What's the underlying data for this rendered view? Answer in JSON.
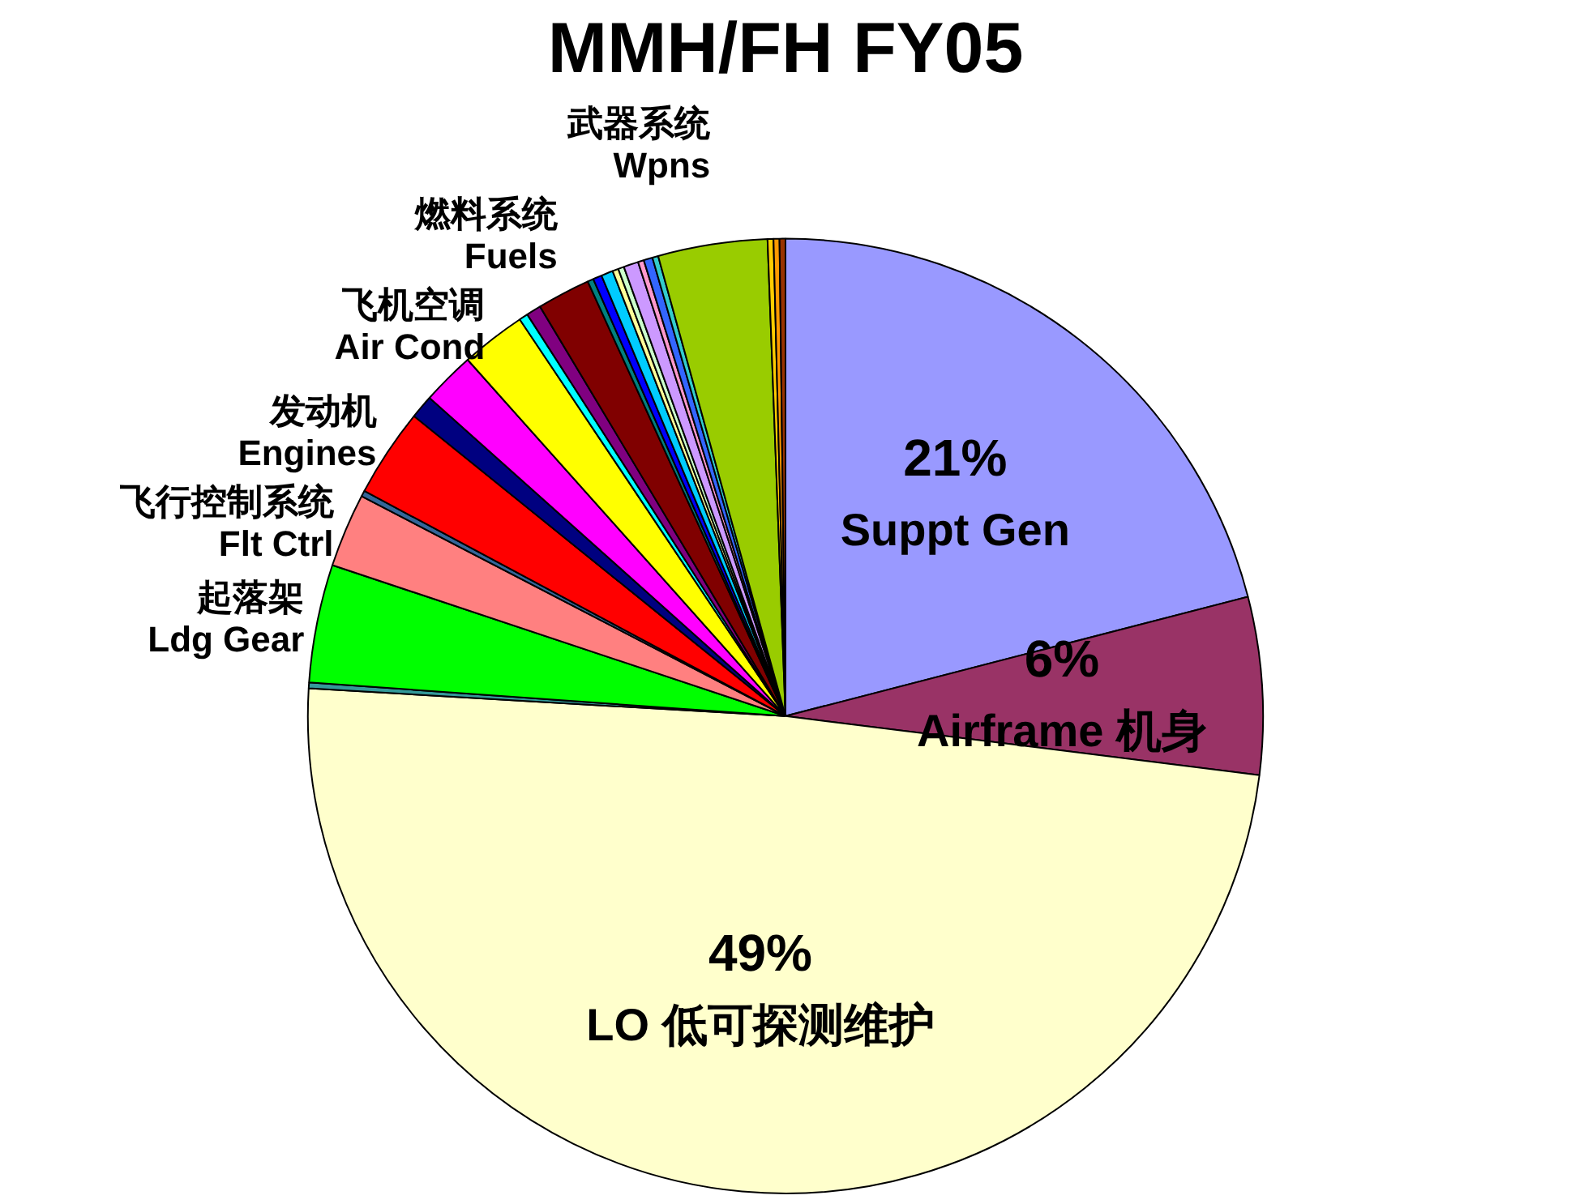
{
  "chart_data": {
    "type": "pie",
    "title": "MMH/FH FY05",
    "legend": false,
    "categories": [
      "Suppt Gen",
      "Airframe 机身",
      "LO 低可探测维护",
      null,
      "起落架 Ldg Gear",
      "飞行控制系统 Flt Ctrl",
      null,
      "发动机 Engines",
      null,
      null,
      "飞机空调 Air Cond",
      null,
      null,
      "燃料系统 Fuels",
      null,
      null,
      null,
      null,
      null,
      null,
      null,
      null,
      null,
      "武器系统 Wpns",
      null,
      null,
      null
    ],
    "values": [
      21,
      6,
      49,
      0.2,
      4,
      2.5,
      0.2,
      3,
      0.8,
      1.8,
      2.2,
      0.3,
      0.5,
      1.8,
      0.2,
      0.3,
      0.4,
      0.2,
      0.2,
      0.5,
      0.2,
      0.3,
      0.2,
      3.7,
      0.2,
      0.2,
      0.2
    ],
    "value_labels": [
      "21%",
      "6%",
      "49%",
      null,
      null,
      null,
      null,
      null,
      null,
      null,
      null,
      null,
      null,
      null,
      null,
      null,
      null,
      null,
      null,
      null,
      null,
      null,
      null,
      null,
      null,
      null,
      null
    ],
    "colors": [
      "#9999ff",
      "#993366",
      "#ffffcc",
      "#339999",
      "#00ff00",
      "#ff8080",
      "#336699",
      "#ff0000",
      "#000080",
      "#ff00ff",
      "#ffff00",
      "#00ffff",
      "#800080",
      "#800000",
      "#008080",
      "#0000ff",
      "#00ccff",
      "#ffff99",
      "#ccffcc",
      "#cc99ff",
      "#ff99cc",
      "#3366ff",
      "#33cccc",
      "#99cc00",
      "#ffcc00",
      "#ff9900",
      "#993300"
    ]
  }
}
